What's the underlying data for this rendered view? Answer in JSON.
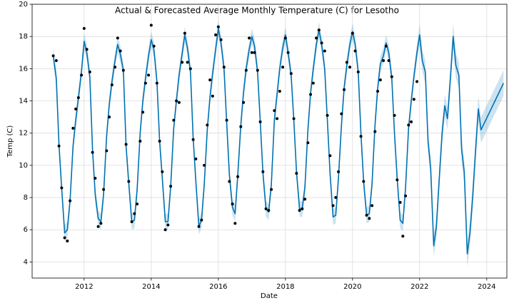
{
  "chart_data": {
    "type": "line",
    "title": "Actual & Forecasted Average Monthly Temperature (C) for Lesotho",
    "xlabel": "Date",
    "ylabel": "Temp (C)",
    "xlim": [
      2010.45,
      2024.6
    ],
    "ylim": [
      3,
      20
    ],
    "xticks": [
      2012,
      2014,
      2016,
      2018,
      2020,
      2022,
      2024
    ],
    "yticks": [
      4,
      6,
      8,
      10,
      12,
      14,
      16,
      18,
      20
    ],
    "grid": true,
    "line_color": "#0072B2",
    "band_color": "#0072B2",
    "point_color": "#000000",
    "x": [
      2011.08,
      2011.17,
      2011.25,
      2011.33,
      2011.42,
      2011.5,
      2011.58,
      2011.67,
      2011.75,
      2011.83,
      2011.92,
      2012.0,
      2012.08,
      2012.17,
      2012.25,
      2012.33,
      2012.42,
      2012.5,
      2012.58,
      2012.67,
      2012.75,
      2012.83,
      2012.92,
      2013.0,
      2013.08,
      2013.17,
      2013.25,
      2013.33,
      2013.42,
      2013.5,
      2013.58,
      2013.67,
      2013.75,
      2013.83,
      2013.92,
      2014.0,
      2014.08,
      2014.17,
      2014.25,
      2014.33,
      2014.42,
      2014.5,
      2014.58,
      2014.67,
      2014.75,
      2014.83,
      2014.92,
      2015.0,
      2015.08,
      2015.17,
      2015.25,
      2015.33,
      2015.42,
      2015.5,
      2015.58,
      2015.67,
      2015.75,
      2015.83,
      2015.92,
      2016.0,
      2016.08,
      2016.17,
      2016.25,
      2016.33,
      2016.42,
      2016.5,
      2016.58,
      2016.67,
      2016.75,
      2016.83,
      2016.92,
      2017.0,
      2017.08,
      2017.17,
      2017.25,
      2017.33,
      2017.42,
      2017.5,
      2017.58,
      2017.67,
      2017.75,
      2017.83,
      2017.92,
      2018.0,
      2018.08,
      2018.17,
      2018.25,
      2018.33,
      2018.42,
      2018.5,
      2018.58,
      2018.67,
      2018.75,
      2018.83,
      2018.92,
      2019.0,
      2019.08,
      2019.17,
      2019.25,
      2019.33,
      2019.42,
      2019.5,
      2019.58,
      2019.67,
      2019.75,
      2019.83,
      2019.92,
      2020.0,
      2020.08,
      2020.17,
      2020.25,
      2020.33,
      2020.42,
      2020.5,
      2020.58,
      2020.67,
      2020.75,
      2020.83,
      2020.92,
      2021.0,
      2021.08,
      2021.17,
      2021.25,
      2021.33,
      2021.42,
      2021.5,
      2021.58,
      2021.67,
      2021.75,
      2021.83,
      2021.92,
      2022.0,
      2022.08,
      2022.17,
      2022.25,
      2022.33,
      2022.42,
      2022.5,
      2022.58,
      2022.67,
      2022.75,
      2022.83,
      2022.92,
      2023.0,
      2023.08,
      2023.17,
      2023.25,
      2023.33,
      2023.42,
      2023.5,
      2023.58,
      2023.67,
      2023.75,
      2023.83,
      2024.5
    ],
    "yhat": [
      16.8,
      15.4,
      11.3,
      8.6,
      5.8,
      6.0,
      7.8,
      11.2,
      12.8,
      14.2,
      15.8,
      17.7,
      17.0,
      15.5,
      11.0,
      8.2,
      6.7,
      6.5,
      8.2,
      11.8,
      13.8,
      15.2,
      16.5,
      17.5,
      16.9,
      15.9,
      11.2,
      8.9,
      6.5,
      6.6,
      8.5,
      12.0,
      14.0,
      15.4,
      16.8,
      17.8,
      17.2,
      15.2,
      11.5,
      9.2,
      6.5,
      6.5,
      8.7,
      12.3,
      14.0,
      15.6,
      16.9,
      18.1,
      17.3,
      15.8,
      11.7,
      9.0,
      6.2,
      6.6,
      8.8,
      12.2,
      14.2,
      15.7,
      17.2,
      18.5,
      17.6,
      16.0,
      12.6,
      9.4,
      7.4,
      7.0,
      9.4,
      12.5,
      14.5,
      16.0,
      17.2,
      18.0,
      17.4,
      15.8,
      12.7,
      9.5,
      7.3,
      7.1,
      8.8,
      12.8,
      14.4,
      16.0,
      17.3,
      18.1,
      17.0,
      15.6,
      12.8,
      9.6,
      7.3,
      7.3,
      8.6,
      12.2,
      14.5,
      16.0,
      17.5,
      18.4,
      17.5,
      16.0,
      12.8,
      9.5,
      6.8,
      6.9,
      9.2,
      12.5,
      14.8,
      16.2,
      17.5,
      18.3,
      17.5,
      15.8,
      12.0,
      9.0,
      6.9,
      7.0,
      8.8,
      12.5,
      14.8,
      16.3,
      16.8,
      17.6,
      17.0,
      15.4,
      12.0,
      9.2,
      6.6,
      6.4,
      8.6,
      12.3,
      14.0,
      15.5,
      17.0,
      18.1,
      16.5,
      15.8,
      11.5,
      9.8,
      5.0,
      6.2,
      9.0,
      12.0,
      13.7,
      12.9,
      15.5,
      18.0,
      16.2,
      15.6,
      11.0,
      9.6,
      4.5,
      5.8,
      8.0,
      11.0,
      13.5,
      12.2,
      15.1
    ],
    "yhat_lower": [
      16.3,
      14.9,
      10.8,
      8.1,
      5.3,
      5.5,
      7.3,
      10.7,
      12.3,
      13.7,
      15.3,
      17.2,
      16.5,
      15.0,
      10.5,
      7.7,
      6.2,
      6.0,
      7.7,
      11.3,
      13.3,
      14.7,
      16.0,
      17.0,
      16.4,
      15.4,
      10.7,
      8.4,
      6.0,
      6.1,
      8.0,
      11.5,
      13.5,
      14.9,
      16.3,
      17.3,
      16.7,
      14.7,
      11.0,
      8.7,
      6.0,
      6.0,
      8.2,
      11.8,
      13.5,
      15.1,
      16.4,
      17.6,
      16.8,
      15.3,
      11.2,
      8.5,
      5.7,
      6.1,
      8.3,
      11.7,
      13.7,
      15.2,
      16.7,
      18.0,
      17.1,
      15.5,
      12.1,
      8.9,
      6.9,
      6.5,
      8.9,
      12.0,
      14.0,
      15.5,
      16.7,
      17.5,
      16.9,
      15.3,
      12.2,
      9.0,
      6.8,
      6.6,
      8.3,
      12.3,
      13.9,
      15.5,
      16.8,
      17.6,
      16.5,
      15.1,
      12.3,
      9.1,
      6.8,
      6.8,
      8.1,
      11.7,
      14.0,
      15.5,
      17.0,
      17.9,
      17.0,
      15.5,
      12.3,
      9.0,
      6.3,
      6.4,
      8.7,
      12.0,
      14.3,
      15.7,
      17.0,
      17.8,
      17.0,
      15.3,
      11.5,
      8.5,
      6.4,
      6.5,
      8.3,
      12.0,
      14.3,
      15.8,
      16.3,
      17.1,
      16.5,
      14.9,
      11.5,
      8.7,
      6.1,
      5.9,
      8.1,
      11.8,
      13.5,
      15.0,
      16.5,
      17.4,
      15.8,
      15.1,
      10.8,
      9.1,
      4.3,
      5.5,
      8.3,
      11.3,
      13.0,
      12.2,
      14.8,
      17.2,
      15.4,
      14.8,
      10.2,
      8.8,
      3.7,
      5.0,
      7.2,
      10.2,
      12.7,
      11.4,
      14.3
    ],
    "yhat_upper": [
      17.3,
      15.9,
      11.8,
      9.1,
      6.3,
      6.5,
      8.3,
      11.7,
      13.3,
      14.7,
      16.3,
      18.2,
      17.5,
      16.0,
      11.5,
      8.7,
      7.2,
      7.0,
      8.7,
      12.3,
      14.3,
      15.7,
      17.0,
      18.0,
      17.4,
      16.4,
      11.7,
      9.4,
      7.0,
      7.1,
      9.0,
      12.5,
      14.5,
      15.9,
      17.3,
      18.3,
      17.7,
      15.7,
      12.0,
      9.7,
      7.0,
      7.0,
      9.2,
      12.8,
      14.5,
      16.1,
      17.4,
      18.6,
      17.8,
      16.3,
      12.2,
      9.5,
      6.7,
      7.1,
      9.3,
      12.7,
      14.7,
      16.2,
      17.7,
      19.0,
      18.1,
      16.5,
      13.1,
      9.9,
      7.9,
      7.5,
      9.9,
      13.0,
      15.0,
      16.5,
      17.7,
      18.5,
      17.9,
      16.3,
      13.2,
      10.0,
      7.8,
      7.6,
      9.3,
      13.3,
      14.9,
      16.5,
      17.8,
      18.6,
      17.5,
      16.1,
      13.3,
      10.1,
      7.8,
      7.8,
      9.1,
      12.7,
      15.0,
      16.5,
      18.0,
      18.9,
      18.0,
      16.5,
      13.3,
      10.0,
      7.3,
      7.4,
      9.7,
      13.0,
      15.3,
      16.7,
      18.0,
      18.8,
      18.0,
      16.3,
      12.5,
      9.5,
      7.4,
      7.5,
      9.3,
      13.0,
      15.3,
      16.8,
      17.3,
      18.1,
      17.5,
      15.9,
      12.5,
      9.7,
      7.1,
      6.9,
      9.1,
      12.8,
      14.5,
      16.0,
      17.5,
      18.8,
      17.2,
      16.5,
      12.2,
      10.5,
      5.7,
      6.9,
      9.7,
      12.7,
      14.4,
      13.6,
      16.2,
      18.8,
      17.0,
      16.4,
      11.8,
      10.4,
      5.3,
      6.6,
      8.8,
      11.8,
      14.3,
      13.0,
      15.9
    ],
    "observed": [
      16.8,
      16.5,
      11.2,
      8.6,
      5.5,
      5.3,
      7.8,
      12.3,
      13.5,
      14.2,
      15.6,
      18.5,
      17.2,
      15.8,
      10.8,
      9.2,
      6.2,
      6.4,
      8.5,
      10.9,
      13.0,
      15.0,
      16.1,
      17.9,
      17.1,
      15.9,
      11.3,
      9.0,
      6.5,
      7.0,
      7.6,
      11.5,
      13.3,
      15.1,
      15.6,
      18.7,
      17.4,
      15.1,
      11.5,
      9.6,
      6.0,
      6.3,
      8.7,
      12.8,
      14.0,
      13.9,
      16.4,
      18.2,
      16.4,
      16.0,
      11.6,
      10.4,
      6.2,
      6.6,
      10.0,
      12.5,
      15.3,
      14.3,
      18.1,
      18.6,
      17.8,
      16.1,
      12.8,
      9.0,
      7.6,
      6.4,
      9.3,
      12.4,
      13.9,
      15.9,
      17.9,
      17.0,
      17.0,
      15.9,
      12.7,
      9.6,
      7.3,
      7.2,
      8.5,
      13.4,
      12.9,
      14.6,
      16.1,
      17.9,
      17.0,
      15.7,
      12.9,
      9.5,
      7.2,
      7.3,
      7.9,
      11.4,
      14.4,
      15.1,
      17.9,
      18.4,
      17.6,
      17.1,
      13.1,
      10.6,
      7.5,
      8.0,
      9.6,
      13.2,
      14.7,
      16.4,
      16.1,
      18.2,
      17.1,
      15.8,
      11.8,
      9.0,
      6.9,
      6.7,
      7.5,
      12.1,
      14.6,
      15.3,
      16.5,
      17.4,
      16.5,
      15.5,
      13.1,
      9.1,
      7.7,
      5.6,
      8.1,
      12.5,
      12.7,
      14.1,
      15.2,
      null,
      null,
      null,
      null,
      null,
      null,
      null,
      null,
      null,
      null,
      null,
      null,
      null,
      null,
      null,
      null,
      null,
      null,
      null,
      null,
      null,
      null,
      null,
      null
    ]
  }
}
